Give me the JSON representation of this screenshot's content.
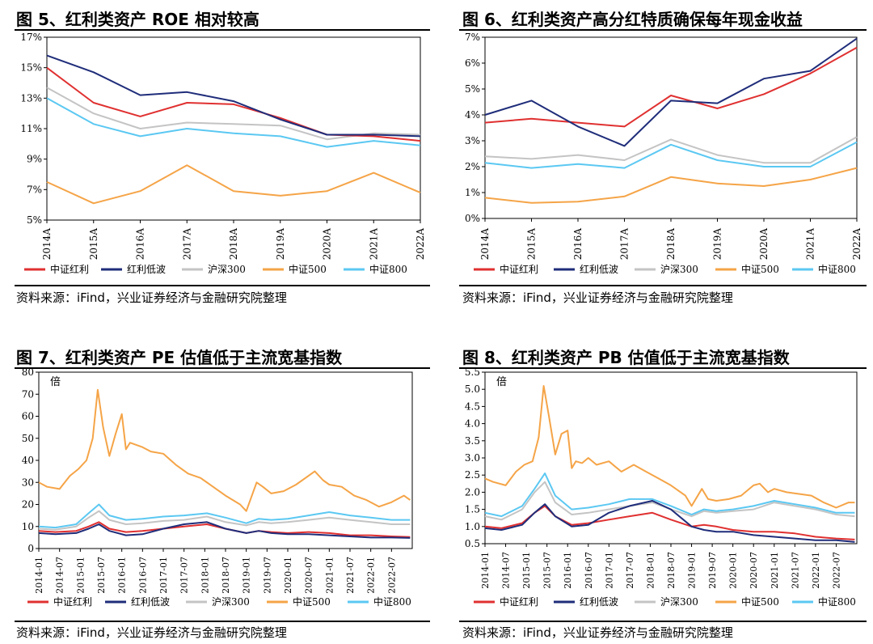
{
  "colors": {
    "中证红利": "#e03030",
    "红利低波": "#1f2d7a",
    "沪深300": "#c4c4c4",
    "中证500": "#f5a447",
    "中证800": "#5bc8f2"
  },
  "chart_data": [
    {
      "type": "line",
      "title": "图 5、红利类资产 ROE 相对较高",
      "source": "资料来源：iFind，兴业证券经济与金融研究院整理",
      "categories": [
        "2014A",
        "2015A",
        "2016A",
        "2017A",
        "2018A",
        "2019A",
        "2020A",
        "2021A",
        "2022A"
      ],
      "ylim": [
        5,
        17
      ],
      "yticks": [
        5,
        7,
        9,
        11,
        13,
        15,
        17
      ],
      "ytick_labels": [
        "5%",
        "7%",
        "9%",
        "11%",
        "13%",
        "15%",
        "17%"
      ],
      "series": [
        {
          "name": "中证红利",
          "values": [
            15.0,
            12.7,
            11.8,
            12.7,
            12.6,
            11.7,
            10.6,
            10.5,
            10.2
          ]
        },
        {
          "name": "红利低波",
          "values": [
            15.8,
            14.7,
            13.2,
            13.4,
            12.8,
            11.6,
            10.6,
            10.6,
            10.5
          ]
        },
        {
          "name": "沪深300",
          "values": [
            13.7,
            12.0,
            11.0,
            11.4,
            11.3,
            11.2,
            10.3,
            10.7,
            10.6
          ]
        },
        {
          "name": "中证500",
          "values": [
            7.5,
            6.1,
            6.9,
            8.6,
            6.9,
            6.6,
            6.9,
            8.1,
            6.8
          ]
        },
        {
          "name": "中证800",
          "values": [
            13.0,
            11.3,
            10.5,
            11.0,
            10.7,
            10.5,
            9.8,
            10.2,
            9.9
          ]
        }
      ]
    },
    {
      "type": "line",
      "title": "图 6、红利类资产高分红特质确保每年现金收益",
      "source": "资料来源：iFind，兴业证券经济与金融研究院整理",
      "categories": [
        "2014A",
        "2015A",
        "2016A",
        "2017A",
        "2018A",
        "2019A",
        "2020A",
        "2021A",
        "2022A"
      ],
      "ylim": [
        0,
        7
      ],
      "yticks": [
        0,
        1,
        2,
        3,
        4,
        5,
        6,
        7
      ],
      "ytick_labels": [
        "0%",
        "1%",
        "2%",
        "3%",
        "4%",
        "5%",
        "6%",
        "7%"
      ],
      "series": [
        {
          "name": "中证红利",
          "values": [
            3.7,
            3.85,
            3.7,
            3.55,
            4.75,
            4.25,
            4.8,
            5.6,
            6.6
          ]
        },
        {
          "name": "红利低波",
          "values": [
            4.0,
            4.55,
            3.55,
            2.8,
            4.55,
            4.45,
            5.4,
            5.7,
            6.95
          ]
        },
        {
          "name": "沪深300",
          "values": [
            2.4,
            2.3,
            2.45,
            2.25,
            3.05,
            2.45,
            2.15,
            2.15,
            3.15
          ]
        },
        {
          "name": "中证500",
          "values": [
            0.8,
            0.6,
            0.65,
            0.85,
            1.6,
            1.35,
            1.25,
            1.5,
            1.95
          ]
        },
        {
          "name": "中证800",
          "values": [
            2.15,
            1.95,
            2.1,
            1.95,
            2.85,
            2.25,
            2.0,
            2.0,
            2.95
          ]
        }
      ]
    },
    {
      "type": "line",
      "title": "图 7、红利类资产 PE 估值低于主流宽基指数",
      "source": "资料来源：iFind，兴业证券经济与金融研究院整理",
      "unit": "倍",
      "x_start": 2014.0,
      "x_end": 2023.0,
      "ylim": [
        0,
        80
      ],
      "yticks": [
        0,
        10,
        20,
        30,
        40,
        50,
        60,
        70,
        80
      ],
      "ytick_labels": [
        "0",
        "10",
        "20",
        "30",
        "40",
        "50",
        "60",
        "70",
        "80"
      ],
      "xticks": [
        "2014-01",
        "2014-07",
        "2015-01",
        "2015-07",
        "2016-01",
        "2016-07",
        "2017-01",
        "2017-07",
        "2018-01",
        "2018-07",
        "2019-01",
        "2019-07",
        "2020-01",
        "2020-07",
        "2021-01",
        "2021-07",
        "2022-01",
        "2022-07"
      ],
      "series": [
        {
          "name": "中证红利",
          "x": [
            2014.0,
            2014.4,
            2014.9,
            2015.2,
            2015.45,
            2015.7,
            2016.1,
            2016.5,
            2017.0,
            2017.5,
            2018.05,
            2018.5,
            2019.0,
            2019.3,
            2019.6,
            2020.0,
            2020.5,
            2021.0,
            2021.5,
            2022.0,
            2022.5,
            2022.95
          ],
          "y": [
            8,
            7.5,
            8,
            10,
            12,
            9,
            7.5,
            8,
            9,
            10,
            11,
            9,
            7,
            8,
            7.5,
            7,
            7.5,
            7,
            6,
            6,
            5.5,
            5.2
          ]
        },
        {
          "name": "红利低波",
          "x": [
            2014.0,
            2014.4,
            2014.9,
            2015.2,
            2015.45,
            2015.7,
            2016.1,
            2016.5,
            2017.0,
            2017.5,
            2018.05,
            2018.5,
            2019.0,
            2019.3,
            2019.6,
            2020.0,
            2020.5,
            2021.0,
            2021.5,
            2022.0,
            2022.5,
            2022.95
          ],
          "y": [
            7,
            6.5,
            7,
            9,
            11,
            8,
            6,
            6.5,
            9,
            11,
            12,
            9,
            7,
            8,
            7,
            6.5,
            6.5,
            6,
            5.5,
            5,
            5,
            4.8
          ]
        },
        {
          "name": "沪深300",
          "x": [
            2014.0,
            2014.4,
            2014.9,
            2015.2,
            2015.45,
            2015.7,
            2016.1,
            2016.5,
            2017.0,
            2017.5,
            2018.05,
            2018.5,
            2019.0,
            2019.3,
            2019.6,
            2020.0,
            2020.5,
            2021.0,
            2021.5,
            2022.0,
            2022.5,
            2022.95
          ],
          "y": [
            9,
            8.5,
            10,
            14,
            17,
            13,
            11,
            11.5,
            12.5,
            13,
            14.5,
            12,
            10.5,
            12,
            11.5,
            12,
            13,
            14,
            13,
            12,
            11,
            11
          ]
        },
        {
          "name": "中证500",
          "x": [
            2014.0,
            2014.2,
            2014.5,
            2014.75,
            2014.95,
            2015.15,
            2015.3,
            2015.42,
            2015.55,
            2015.7,
            2015.85,
            2016.0,
            2016.1,
            2016.2,
            2016.35,
            2016.5,
            2016.7,
            2017.0,
            2017.3,
            2017.6,
            2017.9,
            2018.2,
            2018.5,
            2018.85,
            2019.0,
            2019.25,
            2019.4,
            2019.6,
            2019.9,
            2020.2,
            2020.5,
            2020.65,
            2020.85,
            2021.0,
            2021.3,
            2021.6,
            2021.9,
            2022.2,
            2022.5,
            2022.8,
            2022.95
          ],
          "y": [
            30,
            28,
            27,
            33,
            36,
            40,
            50,
            72,
            55,
            42,
            52,
            61,
            45,
            48,
            47,
            46,
            44,
            43,
            38,
            34,
            32,
            28,
            24,
            20,
            17,
            30,
            28,
            25,
            26,
            29,
            33,
            35,
            31,
            29,
            28,
            24,
            22,
            19,
            21,
            24,
            22
          ]
        },
        {
          "name": "中证800",
          "x": [
            2014.0,
            2014.4,
            2014.9,
            2015.2,
            2015.45,
            2015.7,
            2016.1,
            2016.5,
            2017.0,
            2017.5,
            2018.05,
            2018.5,
            2019.0,
            2019.3,
            2019.6,
            2020.0,
            2020.5,
            2021.0,
            2021.5,
            2022.0,
            2022.5,
            2022.95
          ],
          "y": [
            10,
            9.5,
            11,
            16,
            20,
            15,
            13,
            13.5,
            14.5,
            15,
            16,
            14,
            11.5,
            13.5,
            13,
            13.5,
            15,
            16.5,
            15,
            14,
            13,
            13
          ]
        }
      ]
    },
    {
      "type": "line",
      "title": "图 8、红利类资产 PB 估值低于主流宽基指数",
      "source": "资料来源：iFind，兴业证券经济与金融研究院整理",
      "unit": "倍",
      "x_start": 2014.0,
      "x_end": 2023.0,
      "ylim": [
        0.5,
        5.5
      ],
      "yticks": [
        0.5,
        1.0,
        1.5,
        2.0,
        2.5,
        3.0,
        3.5,
        4.0,
        4.5,
        5.0,
        5.5
      ],
      "ytick_labels": [
        "0.5",
        "1.0",
        "1.5",
        "2.0",
        "2.5",
        "3.0",
        "3.5",
        "4.0",
        "4.5",
        "5.0",
        "5.5"
      ],
      "xticks": [
        "2014-01",
        "2014-07",
        "2015-01",
        "2015-07",
        "2016-01",
        "2016-07",
        "2017-01",
        "2017-07",
        "2018-01",
        "2018-07",
        "2019-01",
        "2019-07",
        "2020-01",
        "2020-07",
        "2021-01",
        "2021-07",
        "2022-01",
        "2022-07"
      ],
      "series": [
        {
          "name": "中证红利",
          "x": [
            2014.0,
            2014.4,
            2014.9,
            2015.2,
            2015.45,
            2015.7,
            2016.1,
            2016.5,
            2017.0,
            2017.5,
            2018.05,
            2018.5,
            2019.0,
            2019.3,
            2019.6,
            2020.0,
            2020.5,
            2021.0,
            2021.5,
            2022.0,
            2022.5,
            2022.95
          ],
          "y": [
            1.0,
            0.95,
            1.1,
            1.4,
            1.6,
            1.3,
            1.05,
            1.1,
            1.2,
            1.3,
            1.4,
            1.2,
            1.0,
            1.05,
            1.0,
            0.9,
            0.85,
            0.85,
            0.8,
            0.7,
            0.65,
            0.62
          ]
        },
        {
          "name": "红利低波",
          "x": [
            2014.0,
            2014.4,
            2014.9,
            2015.2,
            2015.45,
            2015.7,
            2016.1,
            2016.5,
            2017.0,
            2017.5,
            2018.05,
            2018.5,
            2019.0,
            2019.3,
            2019.6,
            2020.0,
            2020.5,
            2021.0,
            2021.5,
            2022.0,
            2022.5,
            2022.95
          ],
          "y": [
            0.95,
            0.9,
            1.05,
            1.4,
            1.65,
            1.3,
            1.0,
            1.05,
            1.4,
            1.6,
            1.75,
            1.5,
            1.0,
            0.9,
            0.85,
            0.85,
            0.75,
            0.7,
            0.65,
            0.6,
            0.6,
            0.55
          ]
        },
        {
          "name": "沪深300",
          "x": [
            2014.0,
            2014.4,
            2014.9,
            2015.2,
            2015.45,
            2015.7,
            2016.1,
            2016.5,
            2017.0,
            2017.5,
            2018.05,
            2018.5,
            2019.0,
            2019.3,
            2019.6,
            2020.0,
            2020.5,
            2021.0,
            2021.5,
            2022.0,
            2022.5,
            2022.95
          ],
          "y": [
            1.3,
            1.2,
            1.5,
            2.0,
            2.3,
            1.7,
            1.35,
            1.4,
            1.5,
            1.6,
            1.7,
            1.5,
            1.3,
            1.45,
            1.4,
            1.45,
            1.5,
            1.7,
            1.6,
            1.5,
            1.35,
            1.3
          ]
        },
        {
          "name": "中证500",
          "x": [
            2014.0,
            2014.2,
            2014.5,
            2014.75,
            2014.95,
            2015.15,
            2015.3,
            2015.42,
            2015.55,
            2015.7,
            2015.85,
            2016.0,
            2016.1,
            2016.2,
            2016.35,
            2016.5,
            2016.7,
            2017.0,
            2017.3,
            2017.6,
            2017.9,
            2018.2,
            2018.5,
            2018.85,
            2019.0,
            2019.25,
            2019.4,
            2019.6,
            2019.9,
            2020.2,
            2020.5,
            2020.65,
            2020.85,
            2021.0,
            2021.3,
            2021.6,
            2021.9,
            2022.2,
            2022.5,
            2022.8,
            2022.95
          ],
          "y": [
            2.4,
            2.3,
            2.2,
            2.6,
            2.8,
            2.9,
            3.6,
            5.1,
            4.2,
            3.1,
            3.7,
            3.8,
            2.7,
            2.9,
            2.85,
            3.0,
            2.8,
            2.9,
            2.6,
            2.8,
            2.6,
            2.4,
            2.2,
            1.9,
            1.6,
            2.1,
            1.8,
            1.75,
            1.8,
            1.9,
            2.2,
            2.25,
            2.0,
            2.1,
            2.0,
            1.95,
            1.9,
            1.7,
            1.55,
            1.7,
            1.7
          ]
        },
        {
          "name": "中证800",
          "x": [
            2014.0,
            2014.4,
            2014.9,
            2015.2,
            2015.45,
            2015.7,
            2016.1,
            2016.5,
            2017.0,
            2017.5,
            2018.05,
            2018.5,
            2019.0,
            2019.3,
            2019.6,
            2020.0,
            2020.5,
            2021.0,
            2021.5,
            2022.0,
            2022.5,
            2022.95
          ],
          "y": [
            1.4,
            1.3,
            1.6,
            2.1,
            2.55,
            1.9,
            1.5,
            1.55,
            1.65,
            1.8,
            1.8,
            1.6,
            1.35,
            1.5,
            1.45,
            1.5,
            1.6,
            1.75,
            1.65,
            1.55,
            1.4,
            1.4
          ]
        }
      ]
    }
  ]
}
